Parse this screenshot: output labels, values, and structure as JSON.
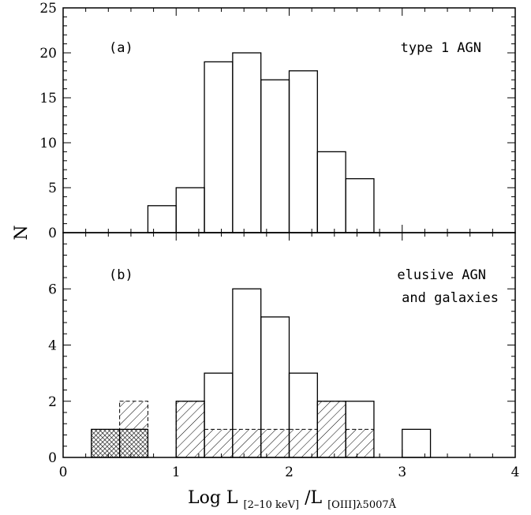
{
  "ylabel": "N",
  "xlabel": {
    "main": "Log L",
    "sub1": "[2–10 keV]",
    "slash": "/L",
    "sub2": "[OIII]λ5007Å"
  },
  "chart_data": [
    {
      "type": "bar",
      "histogram": true,
      "panel_label": "(a)",
      "annotation": [
        "type 1 AGN"
      ],
      "xlim": [
        0,
        4
      ],
      "ylim": [
        0,
        25
      ],
      "x_ticks": [
        0,
        1,
        2,
        3,
        4
      ],
      "y_ticks": [
        0,
        5,
        10,
        15,
        20,
        25
      ],
      "bin_width": 0.25,
      "series": [
        {
          "style": "outline",
          "bins": [
            {
              "x0": 0.75,
              "y": 3
            },
            {
              "x0": 1.0,
              "y": 5
            },
            {
              "x0": 1.25,
              "y": 19
            },
            {
              "x0": 1.5,
              "y": 20
            },
            {
              "x0": 1.75,
              "y": 17
            },
            {
              "x0": 2.0,
              "y": 18
            },
            {
              "x0": 2.25,
              "y": 9
            },
            {
              "x0": 2.5,
              "y": 6
            }
          ]
        }
      ]
    },
    {
      "type": "bar",
      "histogram": true,
      "panel_label": "(b)",
      "annotation": [
        "elusive AGN",
        "and galaxies"
      ],
      "xlim": [
        0,
        4
      ],
      "ylim": [
        0,
        8
      ],
      "x_ticks": [
        0,
        1,
        2,
        3,
        4
      ],
      "y_ticks": [
        0,
        2,
        4,
        6
      ],
      "bin_width": 0.25,
      "series": [
        {
          "style": "outline",
          "bins": [
            {
              "x0": 1.0,
              "y": 2
            },
            {
              "x0": 1.25,
              "y": 3
            },
            {
              "x0": 1.5,
              "y": 6
            },
            {
              "x0": 1.75,
              "y": 5
            },
            {
              "x0": 2.0,
              "y": 3
            },
            {
              "x0": 2.25,
              "y": 2
            },
            {
              "x0": 2.5,
              "y": 2
            },
            {
              "x0": 3.0,
              "y": 1
            }
          ]
        },
        {
          "style": "hatched",
          "bins": [
            {
              "x0": 0.5,
              "y0": 1,
              "y": 2
            },
            {
              "x0": 1.0,
              "y": 2
            },
            {
              "x0": 1.25,
              "y": 1
            },
            {
              "x0": 1.5,
              "y": 1
            },
            {
              "x0": 1.75,
              "y": 1
            },
            {
              "x0": 2.0,
              "y": 1
            },
            {
              "x0": 2.25,
              "y": 2
            },
            {
              "x0": 2.5,
              "y": 1
            }
          ]
        },
        {
          "style": "crosshatched",
          "bins": [
            {
              "x0": 0.25,
              "y": 1
            },
            {
              "x0": 0.5,
              "y": 1
            }
          ]
        }
      ]
    }
  ]
}
